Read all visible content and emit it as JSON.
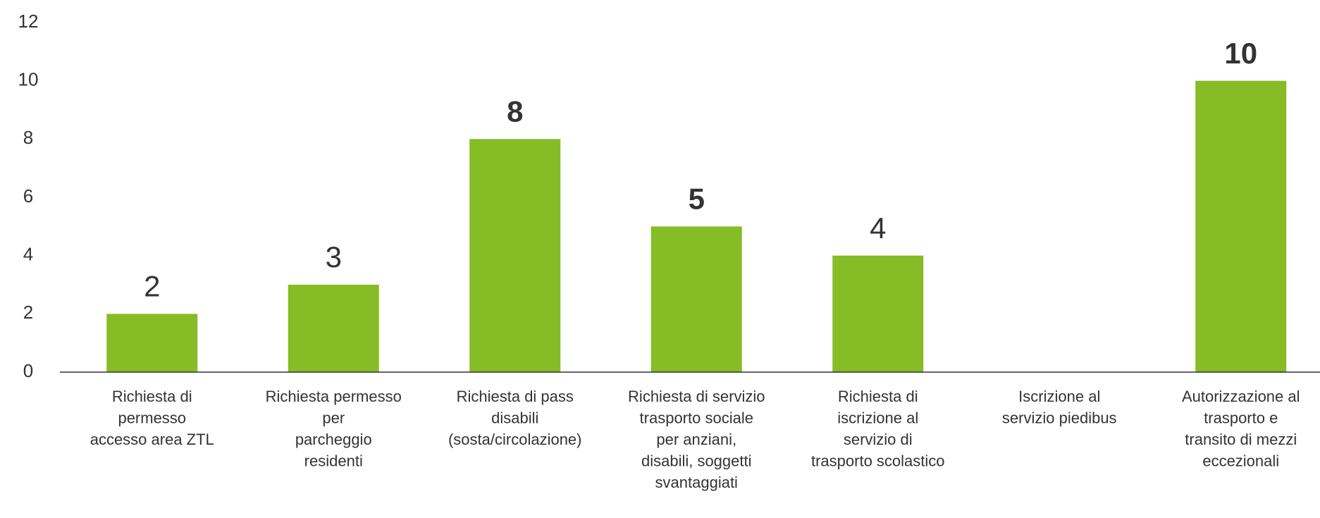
{
  "chart_data": {
    "type": "bar",
    "categories": [
      "Richiesta di\npermesso\naccesso area ZTL",
      "Richiesta permesso\nper\nparcheggio\nresidenti",
      "Richiesta di pass\ndisabili\n(sosta/circolazione)",
      "Richiesta di servizio\ntrasporto sociale\nper anziani,\ndisabili, soggetti\nsvantaggiati",
      "Richiesta di\niscrizione al\nservizio di\ntrasporto scolastico",
      "Iscrizione al\nservizio piedibus",
      "Autorizzazione al\ntrasporto e\ntransito di mezzi\neccezionali"
    ],
    "values": [
      2,
      3,
      8,
      5,
      4,
      null,
      10
    ],
    "value_label_weights": [
      "normal",
      "normal",
      "bold",
      "bold",
      "normal",
      "normal",
      "bold"
    ],
    "color": "#86bc25",
    "ylim": [
      0,
      12
    ],
    "yticks": [
      0,
      2,
      4,
      6,
      8,
      10,
      12
    ],
    "grid": false
  }
}
